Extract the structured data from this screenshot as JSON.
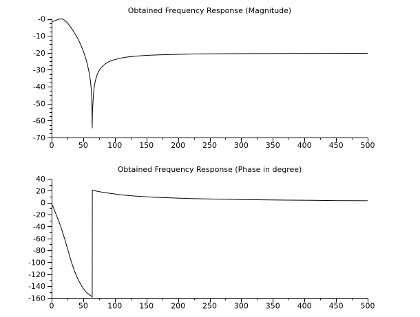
{
  "figure": {
    "background_color": "#ffffff",
    "axis_color": "#000000",
    "curve_color": "#000000"
  },
  "chart_data": [
    {
      "type": "line",
      "name": "magnitude",
      "title": "Obtained Frequency Response (Magnitude)",
      "xlabel": "",
      "ylabel": "",
      "xlim": [
        0,
        500
      ],
      "ylim": [
        -70,
        0
      ],
      "x_ticks": [
        0,
        50,
        100,
        150,
        200,
        250,
        300,
        350,
        400,
        450,
        500
      ],
      "x_tick_labels": [
        "0",
        "50",
        "100",
        "150",
        "200",
        "250",
        "300",
        "350",
        "400",
        "450",
        "500"
      ],
      "y_ticks": [
        0,
        -10,
        -20,
        -30,
        -40,
        -50,
        -60,
        -70
      ],
      "y_tick_labels": [
        "-0",
        "-10",
        "-20",
        "-30",
        "-40",
        "-50",
        "-60",
        "-70"
      ],
      "x_minor_step": 25,
      "y_minor_step": 2.5,
      "grid": false,
      "legend": null,
      "series": [
        {
          "name": "magnitude_dB",
          "points": [
            [
              0,
              -1.5
            ],
            [
              3,
              -1.4
            ],
            [
              6,
              -1.0
            ],
            [
              9,
              -0.5
            ],
            [
              12,
              -0.1
            ],
            [
              15,
              0.0
            ],
            [
              18,
              -0.1
            ],
            [
              21,
              -0.9
            ],
            [
              24,
              -2.0
            ],
            [
              27,
              -3.3
            ],
            [
              30,
              -4.8
            ],
            [
              33,
              -6.4
            ],
            [
              36,
              -8.1
            ],
            [
              39,
              -10.0
            ],
            [
              42,
              -12.1
            ],
            [
              45,
              -14.4
            ],
            [
              48,
              -17.0
            ],
            [
              51,
              -20.0
            ],
            [
              54,
              -23.3
            ],
            [
              56,
              -26.0
            ],
            [
              58,
              -29.2
            ],
            [
              60,
              -33.0
            ],
            [
              61.5,
              -37.0
            ],
            [
              62.5,
              -41.0
            ],
            [
              63.3,
              -46.0
            ],
            [
              63.8,
              -52.0
            ],
            [
              64.2,
              -64.5
            ],
            [
              64.6,
              -55.0
            ],
            [
              65.2,
              -50.0
            ],
            [
              66,
              -45.5
            ],
            [
              67,
              -41.5
            ],
            [
              68,
              -38.8
            ],
            [
              69.5,
              -36.0
            ],
            [
              71.5,
              -33.5
            ],
            [
              74,
              -31.2
            ],
            [
              77,
              -29.4
            ],
            [
              80.5,
              -27.9
            ],
            [
              84.5,
              -26.6
            ],
            [
              89,
              -25.5
            ],
            [
              95,
              -24.6
            ],
            [
              102,
              -23.8
            ],
            [
              110,
              -23.1
            ],
            [
              120,
              -22.5
            ],
            [
              132,
              -22.0
            ],
            [
              146,
              -21.6
            ],
            [
              162,
              -21.3
            ],
            [
              180,
              -21.1
            ],
            [
              200,
              -20.9
            ],
            [
              225,
              -20.7
            ],
            [
              255,
              -20.6
            ],
            [
              290,
              -20.5
            ],
            [
              330,
              -20.45
            ],
            [
              380,
              -20.4
            ],
            [
              440,
              -20.35
            ],
            [
              500,
              -20.3
            ]
          ]
        }
      ]
    },
    {
      "type": "line",
      "name": "phase",
      "title": "Obtained Frequency Response (Phase in degree)",
      "xlabel": "",
      "ylabel": "",
      "xlim": [
        0,
        500
      ],
      "ylim": [
        -160,
        40
      ],
      "x_ticks": [
        0,
        50,
        100,
        150,
        200,
        250,
        300,
        350,
        400,
        450,
        500
      ],
      "x_tick_labels": [
        "0",
        "50",
        "100",
        "150",
        "200",
        "250",
        "300",
        "350",
        "400",
        "450",
        "500"
      ],
      "y_ticks": [
        40,
        20,
        0,
        -20,
        -40,
        -60,
        -80,
        -100,
        -120,
        -140,
        -160
      ],
      "y_tick_labels": [
        "40",
        "20",
        "0",
        "-20",
        "-40",
        "-60",
        "-80",
        "-100",
        "-120",
        "-140",
        "-160"
      ],
      "x_minor_step": 25,
      "y_minor_step": 10,
      "grid": false,
      "legend": null,
      "series": [
        {
          "name": "phase_degrees",
          "points": [
            [
              0,
              -2
            ],
            [
              3,
              -9
            ],
            [
              6,
              -17
            ],
            [
              9,
              -25
            ],
            [
              12,
              -33
            ],
            [
              15,
              -42
            ],
            [
              18,
              -52
            ],
            [
              21,
              -62
            ],
            [
              24,
              -73
            ],
            [
              27,
              -84
            ],
            [
              30,
              -95
            ],
            [
              33,
              -105
            ],
            [
              36,
              -114
            ],
            [
              39,
              -122
            ],
            [
              42,
              -129
            ],
            [
              45,
              -135
            ],
            [
              48,
              -140.5
            ],
            [
              51,
              -145
            ],
            [
              54,
              -149
            ],
            [
              57,
              -152
            ],
            [
              60,
              -154.6
            ],
            [
              62,
              -156.2
            ],
            [
              63.5,
              -157.4
            ],
            [
              64.2,
              -158
            ],
            [
              64.4,
              21
            ],
            [
              66,
              20.6
            ],
            [
              69,
              19.8
            ],
            [
              73,
              18.8
            ],
            [
              78,
              18.0
            ],
            [
              84,
              17.0
            ],
            [
              91,
              15.8
            ],
            [
              99,
              14.6
            ],
            [
              108,
              13.4
            ],
            [
              118,
              12.3
            ],
            [
              130,
              11.2
            ],
            [
              144,
              10.1
            ],
            [
              160,
              9.2
            ],
            [
              178,
              8.4
            ],
            [
              198,
              7.6
            ],
            [
              220,
              6.9
            ],
            [
              245,
              6.3
            ],
            [
              272,
              5.7
            ],
            [
              302,
              5.2
            ],
            [
              335,
              4.7
            ],
            [
              372,
              4.3
            ],
            [
              412,
              3.9
            ],
            [
              455,
              3.5
            ],
            [
              500,
              3.2
            ]
          ]
        }
      ]
    }
  ]
}
